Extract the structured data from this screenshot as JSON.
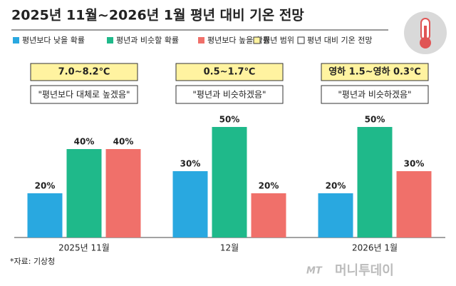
{
  "chart_data": {
    "type": "bar",
    "title": "2025년 11월~2026년 1월 평년 대비 기온 전망",
    "categories": [
      "2025년 11월",
      "12월",
      "2026년 1월"
    ],
    "series": [
      {
        "name": "평년보다 낮을 확률",
        "color": "#29a8e0",
        "values": [
          20,
          30,
          20
        ],
        "value_labels": [
          "20%",
          "30%",
          "20%"
        ]
      },
      {
        "name": "평년과 비슷할 확률",
        "color": "#1fb98a",
        "values": [
          40,
          50,
          50
        ],
        "value_labels": [
          "40%",
          "50%",
          "50%"
        ]
      },
      {
        "name": "평년보다 높을 확률",
        "color": "#f0706a",
        "values": [
          40,
          20,
          30
        ],
        "value_labels": [
          "40%",
          "20%",
          "30%"
        ]
      }
    ],
    "legend_extra": [
      {
        "name": "평년 범위",
        "color": "#fff3a0"
      },
      {
        "name": "평년 대비 기온 전망",
        "color": "#ffffff"
      }
    ],
    "range_labels": [
      "7.0~8.2℃",
      "0.5~1.7℃",
      "영하 1.5~영하 0.3℃"
    ],
    "outlook_labels": [
      "\"평년보다 대체로 높겠음\"",
      "\"평년과 비슷하겠음\"",
      "\"평년과 비슷하겠음\""
    ],
    "source": "*자료: 기상청",
    "watermark_logo": "MT",
    "watermark": "머니투데이"
  }
}
